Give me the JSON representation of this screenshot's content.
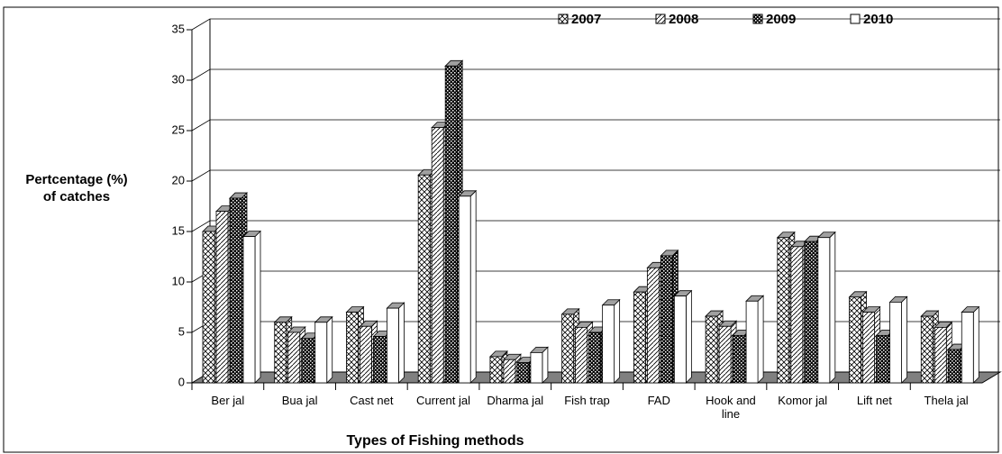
{
  "chart_data": {
    "type": "bar3d",
    "y_label": "Pertcentage (%) of catches",
    "x_label": "Types of Fishing methods",
    "categories": [
      "Ber jal",
      "Bua jal",
      "Cast net",
      "Current jal",
      "Dharma jal",
      "Fish trap",
      "FAD",
      "Hook and line",
      "Komor jal",
      "Lift net",
      "Thela jal"
    ],
    "series": [
      {
        "name": "2007",
        "color": "#000000",
        "pattern": "zigzag",
        "values": [
          15,
          6,
          7,
          20.6,
          2.6,
          6.8,
          9,
          6.6,
          14.4,
          8.5,
          6.6
        ]
      },
      {
        "name": "2008",
        "color": "#000000",
        "pattern": "diagonal",
        "values": [
          17,
          5,
          5.6,
          25.3,
          2.3,
          5.5,
          11.4,
          5.6,
          13.5,
          7,
          5.5
        ]
      },
      {
        "name": "2009",
        "color": "#000000",
        "pattern": "checker",
        "values": [
          18.3,
          4.4,
          4.6,
          31.4,
          2,
          5,
          12.6,
          4.7,
          14,
          4.7,
          3.3
        ]
      },
      {
        "name": "2010",
        "color": "#000000",
        "pattern": "plain",
        "values": [
          14.5,
          6,
          7.4,
          18.5,
          3,
          7.7,
          8.6,
          8.1,
          14.4,
          8,
          7
        ]
      }
    ],
    "ylim": [
      0,
      35
    ],
    "yticks": [
      0,
      5,
      10,
      15,
      20,
      25,
      30,
      35
    ],
    "grid": true,
    "legend": "top-right"
  }
}
